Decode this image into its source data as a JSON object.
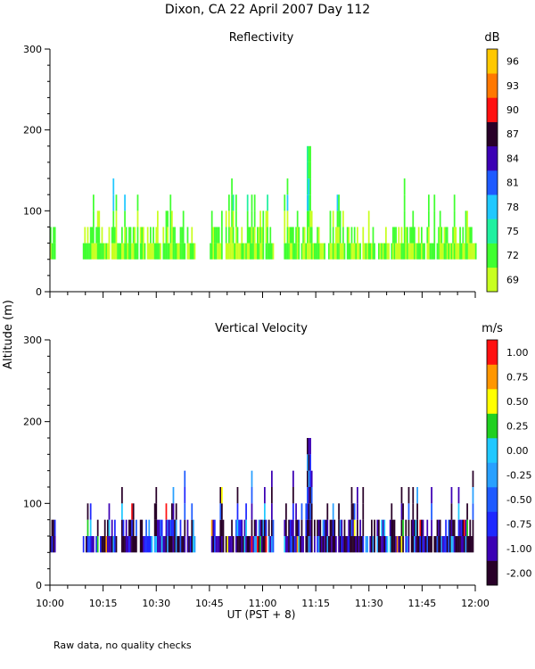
{
  "chart_data": [
    {
      "type": "heatmap",
      "title": "Dixon, CA 22 April 2007  Day 112",
      "panel_title": "Reflectivity",
      "xlabel": "UT  (PST + 8)",
      "ylabel": "Altitude (m)",
      "x_ticks": [
        "10:00",
        "10:15",
        "10:30",
        "10:45",
        "11:00",
        "11:15",
        "11:30",
        "11:45",
        "12:00"
      ],
      "x_range_minutes": [
        0,
        120
      ],
      "y_ticks": [
        "0",
        "100",
        "200",
        "300"
      ],
      "ylim": [
        0,
        300
      ],
      "colorbar_unit": "dB",
      "colorbar_levels": [
        "69",
        "72",
        "75",
        "78",
        "81",
        "84",
        "87",
        "90",
        "93",
        "96"
      ],
      "colorbar_colors": [
        "#c8ff20",
        "#40ff30",
        "#20f0a0",
        "#20c8ff",
        "#1e5aff",
        "#3c00b4",
        "#280028",
        "#ff1010",
        "#ff7800",
        "#ffc800"
      ],
      "data_gaps_minutes": [
        [
          1.5,
          9
        ],
        [
          41,
          45
        ],
        [
          63,
          66
        ]
      ],
      "echo_layer_altitude_m": [
        40,
        100
      ],
      "peak_echo": {
        "time": "11:13",
        "altitude_m": 180
      }
    },
    {
      "type": "heatmap",
      "panel_title": "Vertical Velocity",
      "x_ticks": [
        "10:00",
        "10:15",
        "10:30",
        "10:45",
        "11:00",
        "11:15",
        "11:30",
        "11:45",
        "12:00"
      ],
      "x_range_minutes": [
        0,
        120
      ],
      "y_ticks": [
        "0",
        "100",
        "200",
        "300"
      ],
      "ylim": [
        0,
        300
      ],
      "colorbar_unit": "m/s",
      "colorbar_levels": [
        "-2.00",
        "-1.00",
        "-0.75",
        "-0.50",
        "-0.25",
        "0.00",
        "0.25",
        "0.50",
        "0.75",
        "1.00"
      ],
      "colorbar_colors": [
        "#280028",
        "#3c00b4",
        "#1e28ff",
        "#1e5aff",
        "#28a0ff",
        "#20c8ff",
        "#20d020",
        "#ffff00",
        "#ff9600",
        "#ff1010"
      ],
      "data_gaps_minutes": [
        [
          1.5,
          9
        ],
        [
          41,
          45
        ],
        [
          63,
          66
        ]
      ],
      "echo_layer_altitude_m": [
        40,
        100
      ],
      "peak_echo": {
        "time": "11:13",
        "altitude_m": 180
      }
    }
  ],
  "footer_note": "Raw data, no quality checks"
}
